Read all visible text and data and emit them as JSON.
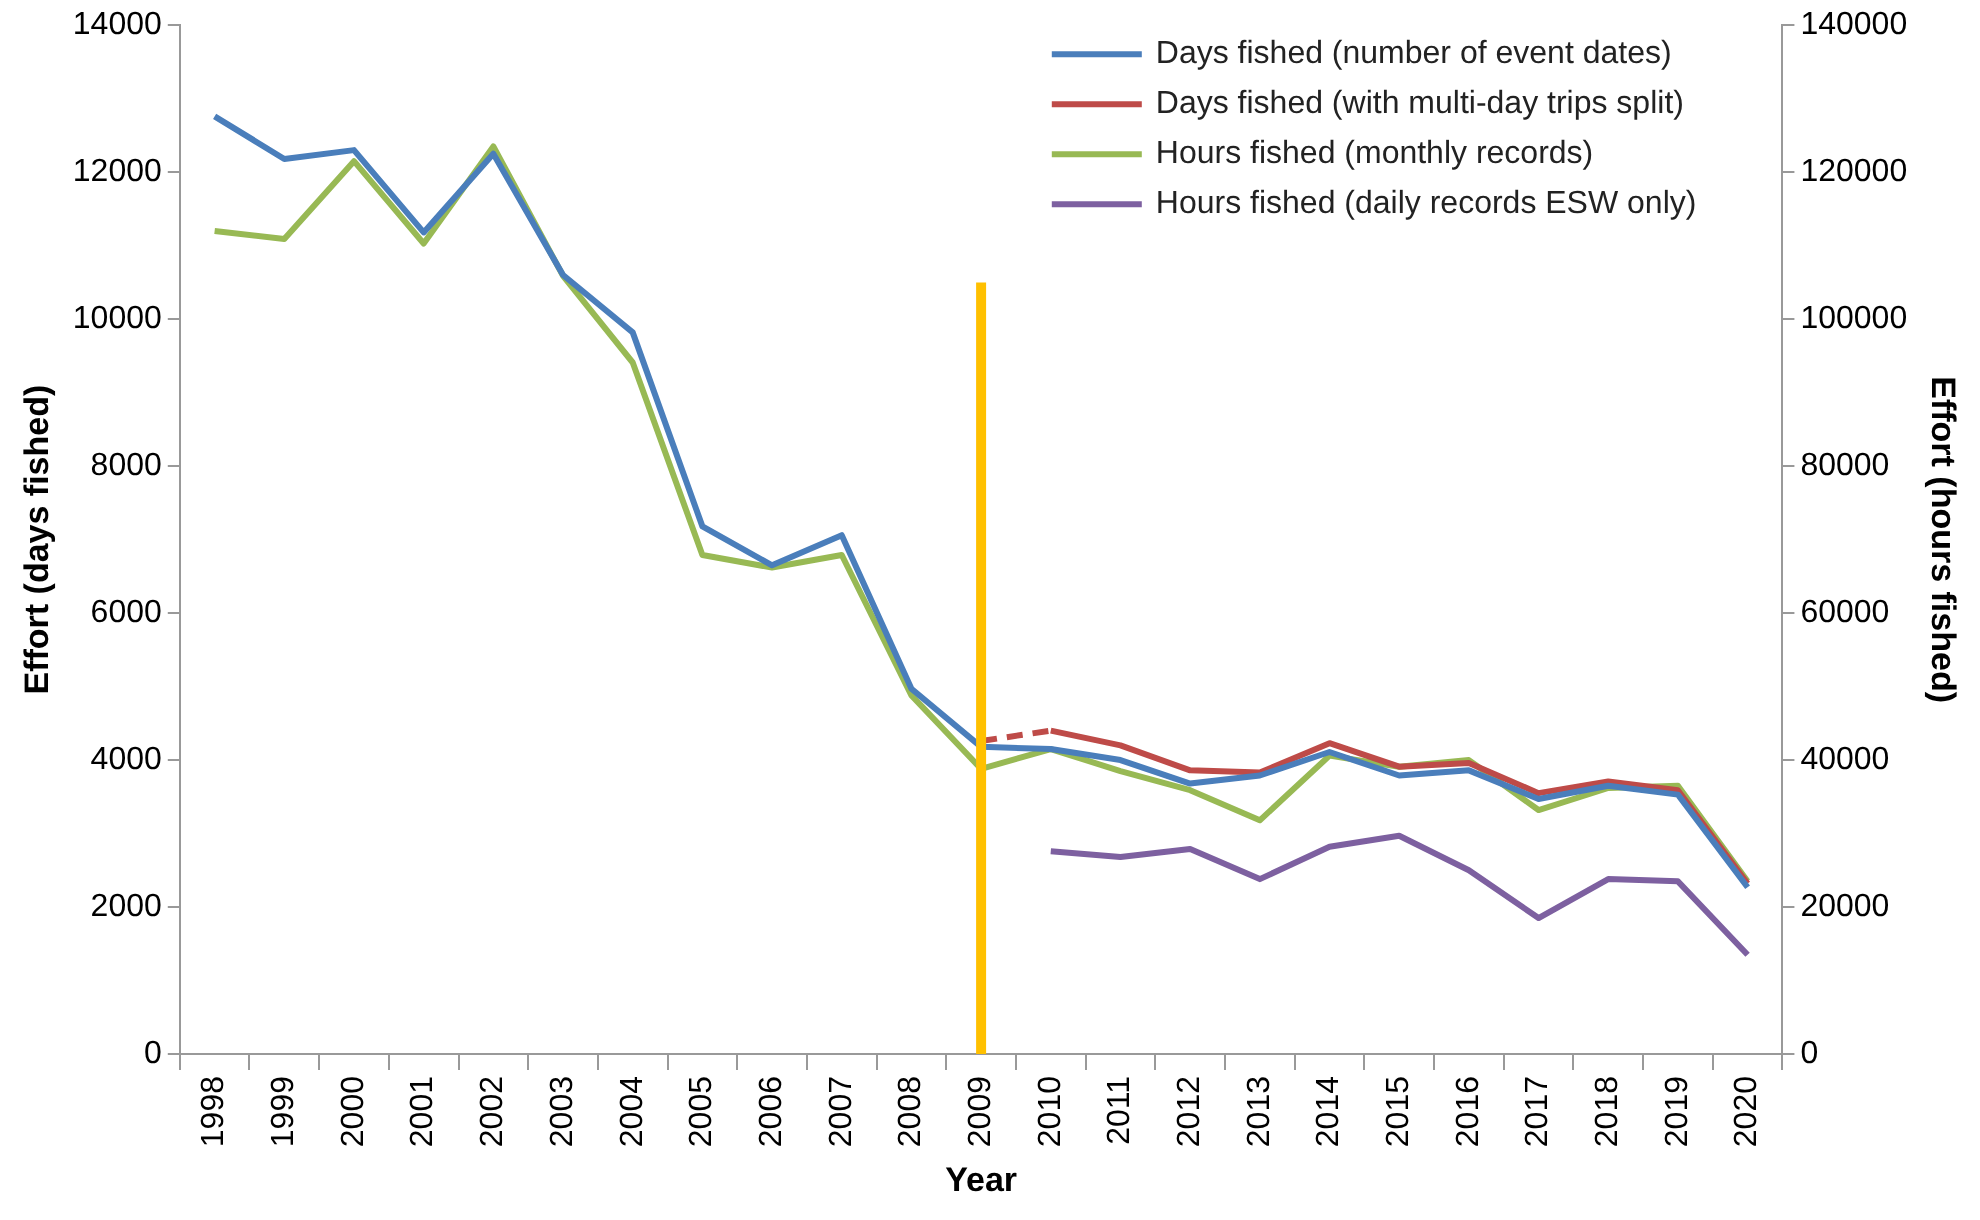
{
  "chart_data": {
    "type": "line",
    "xlabel": "Year",
    "ylabel": "Effort (days fished)",
    "y2label": "Effort (hours fished)",
    "categories": [
      "1998",
      "1999",
      "2000",
      "2001",
      "2002",
      "2003",
      "2004",
      "2005",
      "2006",
      "2007",
      "2008",
      "2009",
      "2010",
      "2011",
      "2012",
      "2013",
      "2014",
      "2015",
      "2016",
      "2017",
      "2018",
      "2019",
      "2020"
    ],
    "series": [
      {
        "name": "Days fished (number of event dates)",
        "color": "#4a7ebb",
        "values": [
          12760,
          12180,
          12300,
          11180,
          12250,
          10600,
          9820,
          7180,
          6650,
          7060,
          4970,
          4180,
          4150,
          4000,
          3680,
          3790,
          4110,
          3790,
          3860,
          3470,
          3650,
          3530,
          2270
        ]
      },
      {
        "name": "Days fished (with multi-day trips split)",
        "color": "#be4b48",
        "values": [
          null,
          null,
          null,
          null,
          null,
          null,
          null,
          null,
          null,
          null,
          null,
          null,
          4400,
          4200,
          3860,
          3830,
          4230,
          3910,
          3960,
          3550,
          3710,
          3590,
          2320
        ]
      },
      {
        "color": "#be4b48",
        "line_style": "dashed",
        "values": [
          null,
          null,
          null,
          null,
          null,
          null,
          null,
          null,
          null,
          null,
          null,
          4260,
          4400,
          null,
          null,
          null,
          null,
          null,
          null,
          null,
          null,
          null,
          null
        ]
      },
      {
        "name": "Hours fished (monthly records)",
        "color": "#98b954",
        "axis": "y2",
        "values": [
          112000,
          110900,
          121500,
          110300,
          123500,
          105900,
          94100,
          67900,
          66200,
          67900,
          48800,
          38800,
          41500,
          38500,
          35900,
          31800,
          40600,
          39100,
          40000,
          33200,
          36200,
          36500,
          23500
        ]
      },
      {
        "name": "Hours fished (daily records ESW only)",
        "color": "#7d60a0",
        "axis": "y2",
        "values": [
          null,
          null,
          null,
          null,
          null,
          null,
          null,
          null,
          null,
          null,
          null,
          null,
          27600,
          26800,
          27900,
          23800,
          28200,
          29700,
          25000,
          18500,
          23800,
          23500,
          13500
        ]
      }
    ],
    "ylim": [
      0,
      14000
    ],
    "yticks": [
      0,
      2000,
      4000,
      6000,
      8000,
      10000,
      12000,
      14000
    ],
    "y2lim": [
      0,
      140000
    ],
    "y2ticks": [
      0,
      20000,
      40000,
      60000,
      80000,
      100000,
      120000,
      140000
    ],
    "ref_lines": [
      {
        "axis": "x",
        "value": "2009",
        "color": "#ffc000"
      }
    ],
    "legend": "top right",
    "grid": false,
    "marker": "none",
    "line_style": "solid"
  }
}
